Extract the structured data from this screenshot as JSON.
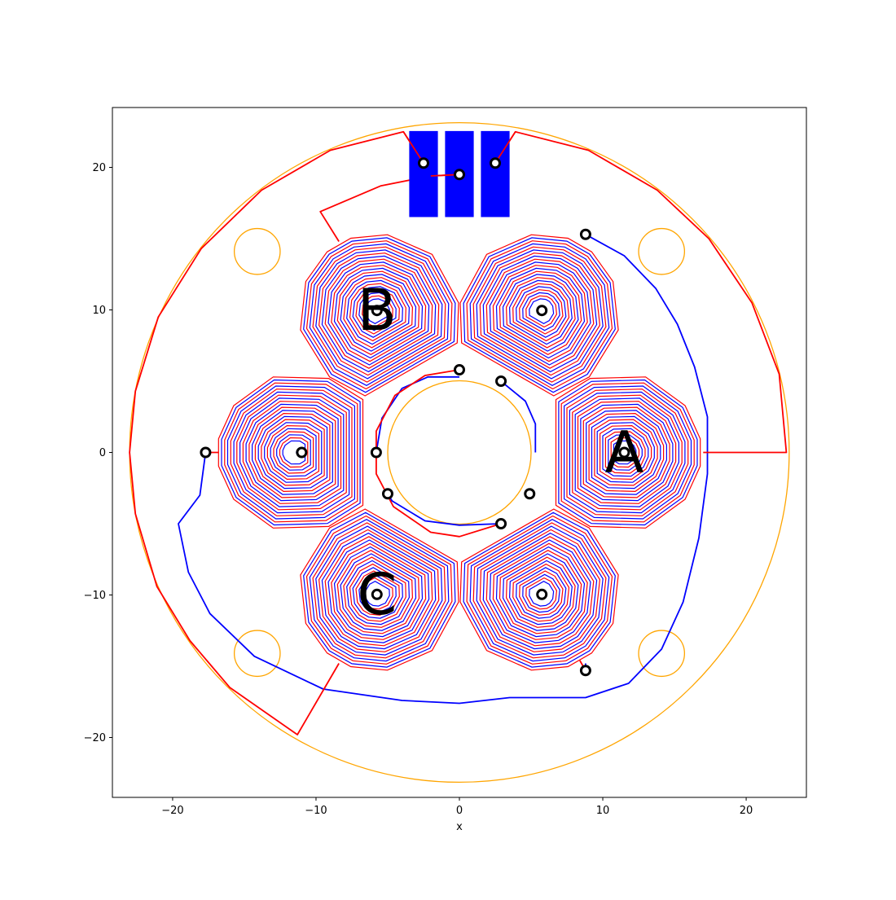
{
  "chart_data": {
    "type": "scatter",
    "title": "",
    "xlabel": "x",
    "ylabel": "",
    "xlim": [
      -24.2,
      24.2
    ],
    "ylim": [
      -24.2,
      24.2
    ],
    "grid": false,
    "x_ticks": [
      -20,
      -10,
      0,
      10,
      20
    ],
    "y_ticks": [
      -20,
      -10,
      0,
      10,
      20
    ],
    "x_tick_labels": [
      "−20",
      "−10",
      "0",
      "10",
      "20"
    ],
    "y_tick_labels": [
      "−20",
      "−10",
      "0",
      "10",
      "20"
    ],
    "colors": {
      "outline": "#ffa500",
      "red_trace": "#ff0000",
      "blue_trace": "#0000ff",
      "pad": "#0000ff",
      "via": "#000000",
      "axes": "#000000"
    },
    "board": {
      "outer_radius": 23,
      "inner_radius": 5,
      "mount_holes": [
        {
          "x": -14.1,
          "y": 14.1,
          "r": 1.6
        },
        {
          "x": 14.1,
          "y": 14.1,
          "r": 1.6
        },
        {
          "x": -14.1,
          "y": -14.1,
          "r": 1.6
        },
        {
          "x": 14.1,
          "y": -14.1,
          "r": 1.6
        }
      ]
    },
    "coils": {
      "count": 6,
      "center_radius": 11.5,
      "angles_deg": [
        0,
        60,
        120,
        180,
        240,
        300
      ],
      "turns": 11,
      "outer_radius": 5.3,
      "inner_radius": 0.6
    },
    "phase_labels": [
      {
        "text": "A",
        "x": 11.5,
        "y": 0
      },
      {
        "text": "B",
        "x": -5.75,
        "y": 9.96
      },
      {
        "text": "C",
        "x": -5.75,
        "y": -9.96
      }
    ],
    "pads": [
      {
        "x": -2.5,
        "y": 19.55,
        "w": 2.0,
        "h": 6.0
      },
      {
        "x": 0.0,
        "y": 19.55,
        "w": 2.0,
        "h": 6.0
      },
      {
        "x": 2.5,
        "y": 19.55,
        "w": 2.0,
        "h": 6.0
      }
    ],
    "vias": [
      {
        "x": -2.5,
        "y": 20.3
      },
      {
        "x": 0.0,
        "y": 19.5
      },
      {
        "x": 2.5,
        "y": 20.3
      },
      {
        "x": 8.8,
        "y": 15.3
      },
      {
        "x": 8.8,
        "y": -15.3
      },
      {
        "x": -17.7,
        "y": 0.0
      },
      {
        "x": -11.0,
        "y": 0.0
      },
      {
        "x": -5.8,
        "y": 0.0
      },
      {
        "x": 0.0,
        "y": 5.8
      },
      {
        "x": 2.9,
        "y": 5.0
      },
      {
        "x": 4.9,
        "y": -2.9
      },
      {
        "x": 2.9,
        "y": -5.0
      },
      {
        "x": -5.0,
        "y": -2.9
      },
      {
        "x": 5.75,
        "y": 9.96
      },
      {
        "x": -5.75,
        "y": 9.96
      },
      {
        "x": 5.75,
        "y": -9.96
      },
      {
        "x": -5.75,
        "y": -9.96
      },
      {
        "x": 11.5,
        "y": 0.0
      }
    ],
    "red_traces": [
      [
        [
          -2.5,
          20.3
        ],
        [
          -3.9,
          22.5
        ],
        [
          -9.0,
          21.2
        ],
        [
          -13.8,
          18.4
        ],
        [
          -18.0,
          14.3
        ],
        [
          -21.0,
          9.5
        ],
        [
          -22.6,
          4.3
        ],
        [
          -23.0,
          0.0
        ],
        [
          -22.6,
          -4.3
        ],
        [
          -21.1,
          -9.4
        ],
        [
          -18.8,
          -13.2
        ],
        [
          -16.0,
          -16.5
        ],
        [
          -11.3,
          -19.8
        ],
        [
          -8.4,
          -14.8
        ]
      ],
      [
        [
          2.5,
          20.3
        ],
        [
          3.9,
          22.5
        ],
        [
          9.0,
          21.2
        ],
        [
          13.8,
          18.4
        ],
        [
          17.4,
          15.0
        ],
        [
          20.4,
          10.5
        ],
        [
          22.3,
          5.5
        ],
        [
          22.8,
          0.0
        ],
        [
          17.0,
          0.0
        ]
      ],
      [
        [
          0.0,
          19.5
        ],
        [
          -2.0,
          19.4
        ],
        [
          -5.5,
          18.7
        ],
        [
          -9.7,
          16.9
        ],
        [
          -8.4,
          14.8
        ]
      ],
      [
        [
          0.0,
          5.8
        ],
        [
          -2.4,
          5.4
        ],
        [
          -4.5,
          4.0
        ],
        [
          -5.8,
          1.5
        ],
        [
          -5.8,
          -1.5
        ],
        [
          -4.6,
          -3.8
        ],
        [
          -2.0,
          -5.6
        ],
        [
          0.0,
          -5.9
        ],
        [
          2.9,
          -5.0
        ]
      ],
      [
        [
          -17.7,
          0.0
        ],
        [
          -16.8,
          0.0
        ]
      ],
      [
        [
          8.8,
          -15.3
        ],
        [
          8.4,
          -14.6
        ]
      ]
    ],
    "blue_traces": [
      [
        [
          8.8,
          15.3
        ],
        [
          11.5,
          13.8
        ],
        [
          13.7,
          11.5
        ],
        [
          15.2,
          9.0
        ],
        [
          16.4,
          6.0
        ],
        [
          17.3,
          2.5
        ],
        [
          17.3,
          -1.5
        ],
        [
          16.7,
          -6.0
        ],
        [
          15.6,
          -10.5
        ],
        [
          14.1,
          -13.8
        ],
        [
          11.8,
          -16.2
        ],
        [
          8.8,
          -17.2
        ],
        [
          3.5,
          -17.2
        ],
        [
          0.0,
          -17.6
        ],
        [
          -4.0,
          -17.4
        ],
        [
          -9.5,
          -16.6
        ],
        [
          -14.3,
          -14.3
        ],
        [
          -17.4,
          -11.3
        ],
        [
          -18.9,
          -8.4
        ],
        [
          -19.6,
          -5.0
        ],
        [
          -18.1,
          -3.0
        ],
        [
          -17.7,
          0.0
        ]
      ],
      [
        [
          -5.8,
          0.0
        ],
        [
          -5.4,
          2.4
        ],
        [
          -4.0,
          4.5
        ],
        [
          -2.2,
          5.3
        ],
        [
          0.0,
          5.3
        ]
      ],
      [
        [
          2.9,
          -5.0
        ],
        [
          0.0,
          -5.1
        ],
        [
          -2.4,
          -4.8
        ],
        [
          -4.7,
          -3.4
        ],
        [
          -5.0,
          -2.9
        ]
      ],
      [
        [
          5.3,
          0.0
        ],
        [
          5.3,
          2.0
        ],
        [
          4.6,
          3.6
        ],
        [
          2.9,
          5.0
        ]
      ],
      [
        [
          -11.0,
          0.0
        ],
        [
          -11.4,
          0.0
        ]
      ],
      [
        [
          8.8,
          -15.3
        ],
        [
          8.8,
          -14.8
        ]
      ]
    ]
  }
}
